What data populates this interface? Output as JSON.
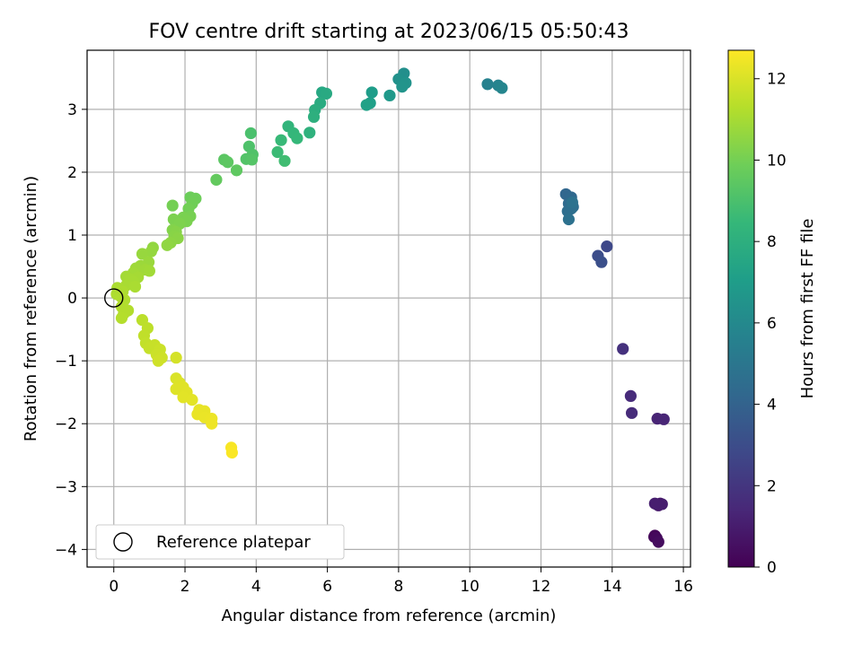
{
  "chart_data": {
    "type": "scatter",
    "title": "FOV centre drift starting at 2023/06/15 05:50:43",
    "xlabel": "Angular distance from reference (arcmin)",
    "ylabel": "Rotation from reference (arcmin)",
    "xlim": [
      -0.75,
      16.2
    ],
    "ylim": [
      -4.28,
      3.94
    ],
    "xticks": [
      "0",
      "2",
      "4",
      "6",
      "8",
      "10",
      "12",
      "14",
      "16"
    ],
    "yticks": [
      "−4",
      "−3",
      "−2",
      "−1",
      "0",
      "1",
      "2",
      "3"
    ],
    "grid": true,
    "legend": {
      "placement": "lower-left",
      "entries": [
        "Reference platepar"
      ]
    },
    "reference_point": {
      "x": 0,
      "y": 0
    },
    "colorbar": {
      "label": "Hours from first FF file",
      "range": [
        0,
        12.7
      ],
      "ticks": [
        "0",
        "2",
        "4",
        "6",
        "8",
        "10",
        "12"
      ],
      "colormap": [
        "#440154",
        "#482878",
        "#3e4989",
        "#31688e",
        "#26828e",
        "#1f9e89",
        "#35b779",
        "#6ece58",
        "#b5de2b",
        "#fde725"
      ]
    },
    "points": [
      {
        "x": 15.2,
        "y": -3.78,
        "t": 0.1
      },
      {
        "x": 15.18,
        "y": -3.8,
        "t": 0.2
      },
      {
        "x": 15.25,
        "y": -3.82,
        "t": 0.3
      },
      {
        "x": 15.3,
        "y": -3.88,
        "t": 0.4
      },
      {
        "x": 15.25,
        "y": -3.28,
        "t": 0.7
      },
      {
        "x": 15.35,
        "y": -3.27,
        "t": 0.8
      },
      {
        "x": 15.3,
        "y": -3.3,
        "t": 0.9
      },
      {
        "x": 15.4,
        "y": -3.28,
        "t": 1.0
      },
      {
        "x": 15.2,
        "y": -3.27,
        "t": 1.05
      },
      {
        "x": 15.27,
        "y": -1.92,
        "t": 1.3
      },
      {
        "x": 15.45,
        "y": -1.93,
        "t": 1.35
      },
      {
        "x": 14.52,
        "y": -1.56,
        "t": 1.55
      },
      {
        "x": 14.55,
        "y": -1.83,
        "t": 1.6
      },
      {
        "x": 14.3,
        "y": -0.81,
        "t": 1.8
      },
      {
        "x": 13.85,
        "y": 0.82,
        "t": 2.8
      },
      {
        "x": 13.6,
        "y": 0.67,
        "t": 3.0
      },
      {
        "x": 13.7,
        "y": 0.57,
        "t": 3.1
      },
      {
        "x": 12.7,
        "y": 1.65,
        "t": 4.2
      },
      {
        "x": 12.85,
        "y": 1.6,
        "t": 4.3
      },
      {
        "x": 12.78,
        "y": 1.5,
        "t": 4.4
      },
      {
        "x": 12.9,
        "y": 1.45,
        "t": 4.5
      },
      {
        "x": 12.75,
        "y": 1.38,
        "t": 4.55
      },
      {
        "x": 12.85,
        "y": 1.42,
        "t": 4.6
      },
      {
        "x": 12.78,
        "y": 1.25,
        "t": 4.7
      },
      {
        "x": 12.88,
        "y": 1.52,
        "t": 4.75
      },
      {
        "x": 10.5,
        "y": 3.4,
        "t": 5.6
      },
      {
        "x": 10.8,
        "y": 3.38,
        "t": 5.7
      },
      {
        "x": 10.9,
        "y": 3.34,
        "t": 5.8
      },
      {
        "x": 8.15,
        "y": 3.57,
        "t": 6.3
      },
      {
        "x": 8.0,
        "y": 3.48,
        "t": 6.4
      },
      {
        "x": 8.2,
        "y": 3.42,
        "t": 6.5
      },
      {
        "x": 8.1,
        "y": 3.36,
        "t": 6.55
      },
      {
        "x": 7.75,
        "y": 3.22,
        "t": 6.8
      },
      {
        "x": 7.25,
        "y": 3.27,
        "t": 7.0
      },
      {
        "x": 7.2,
        "y": 3.1,
        "t": 7.1
      },
      {
        "x": 7.1,
        "y": 3.07,
        "t": 7.2
      },
      {
        "x": 5.85,
        "y": 3.27,
        "t": 7.6
      },
      {
        "x": 5.97,
        "y": 3.25,
        "t": 7.7
      },
      {
        "x": 5.8,
        "y": 3.1,
        "t": 7.8
      },
      {
        "x": 5.65,
        "y": 2.99,
        "t": 7.9
      },
      {
        "x": 5.62,
        "y": 2.88,
        "t": 8.0
      },
      {
        "x": 5.5,
        "y": 2.63,
        "t": 8.15
      },
      {
        "x": 4.9,
        "y": 2.73,
        "t": 8.3
      },
      {
        "x": 5.05,
        "y": 2.62,
        "t": 8.4
      },
      {
        "x": 5.15,
        "y": 2.54,
        "t": 8.45
      },
      {
        "x": 4.7,
        "y": 2.51,
        "t": 8.55
      },
      {
        "x": 4.6,
        "y": 2.32,
        "t": 8.65
      },
      {
        "x": 4.8,
        "y": 2.18,
        "t": 8.75
      },
      {
        "x": 3.85,
        "y": 2.62,
        "t": 9.0
      },
      {
        "x": 3.8,
        "y": 2.41,
        "t": 9.1
      },
      {
        "x": 3.9,
        "y": 2.28,
        "t": 9.15
      },
      {
        "x": 3.72,
        "y": 2.21,
        "t": 9.2
      },
      {
        "x": 3.88,
        "y": 2.2,
        "t": 9.25
      },
      {
        "x": 3.1,
        "y": 2.2,
        "t": 9.4
      },
      {
        "x": 3.2,
        "y": 2.16,
        "t": 9.45
      },
      {
        "x": 3.45,
        "y": 2.03,
        "t": 9.5
      },
      {
        "x": 2.88,
        "y": 1.88,
        "t": 9.6
      },
      {
        "x": 2.15,
        "y": 1.6,
        "t": 9.8
      },
      {
        "x": 2.3,
        "y": 1.58,
        "t": 9.85
      },
      {
        "x": 2.2,
        "y": 1.5,
        "t": 9.9
      },
      {
        "x": 2.1,
        "y": 1.42,
        "t": 9.95
      },
      {
        "x": 1.65,
        "y": 1.47,
        "t": 10.0
      },
      {
        "x": 2.15,
        "y": 1.3,
        "t": 10.05
      },
      {
        "x": 1.95,
        "y": 1.28,
        "t": 10.1
      },
      {
        "x": 2.05,
        "y": 1.22,
        "t": 10.12
      },
      {
        "x": 1.68,
        "y": 1.25,
        "t": 10.15
      },
      {
        "x": 1.85,
        "y": 1.18,
        "t": 10.2
      },
      {
        "x": 1.65,
        "y": 1.08,
        "t": 10.3
      },
      {
        "x": 1.75,
        "y": 1.05,
        "t": 10.35
      },
      {
        "x": 1.7,
        "y": 0.98,
        "t": 10.4
      },
      {
        "x": 1.8,
        "y": 0.95,
        "t": 10.45
      },
      {
        "x": 1.6,
        "y": 0.88,
        "t": 10.5
      },
      {
        "x": 1.5,
        "y": 0.84,
        "t": 10.55
      },
      {
        "x": 1.1,
        "y": 0.8,
        "t": 10.6
      },
      {
        "x": 1.05,
        "y": 0.74,
        "t": 10.65
      },
      {
        "x": 0.8,
        "y": 0.7,
        "t": 10.7
      },
      {
        "x": 0.98,
        "y": 0.57,
        "t": 10.75
      },
      {
        "x": 0.75,
        "y": 0.51,
        "t": 10.8
      },
      {
        "x": 0.62,
        "y": 0.47,
        "t": 10.85
      },
      {
        "x": 0.88,
        "y": 0.45,
        "t": 10.88
      },
      {
        "x": 1.0,
        "y": 0.43,
        "t": 10.9
      },
      {
        "x": 0.55,
        "y": 0.4,
        "t": 10.92
      },
      {
        "x": 0.35,
        "y": 0.34,
        "t": 10.95
      },
      {
        "x": 0.68,
        "y": 0.33,
        "t": 10.97
      },
      {
        "x": 0.45,
        "y": 0.3,
        "t": 11.0
      },
      {
        "x": 0.55,
        "y": 0.26,
        "t": 11.02
      },
      {
        "x": 0.35,
        "y": 0.2,
        "t": 11.05
      },
      {
        "x": 0.6,
        "y": 0.18,
        "t": 11.07
      },
      {
        "x": 0.1,
        "y": 0.16,
        "t": 11.1
      },
      {
        "x": 0.25,
        "y": 0.1,
        "t": 11.12
      },
      {
        "x": 0.08,
        "y": 0.06,
        "t": 11.14
      },
      {
        "x": 0.2,
        "y": 0.02,
        "t": 11.16
      },
      {
        "x": 0.3,
        "y": -0.03,
        "t": 11.18
      },
      {
        "x": 0.22,
        "y": -0.14,
        "t": 11.2
      },
      {
        "x": 0.4,
        "y": -0.2,
        "t": 11.22
      },
      {
        "x": 0.28,
        "y": -0.25,
        "t": 11.24
      },
      {
        "x": 0.22,
        "y": -0.32,
        "t": 11.26
      },
      {
        "x": 0.8,
        "y": -0.35,
        "t": 11.4
      },
      {
        "x": 0.95,
        "y": -0.48,
        "t": 11.45
      },
      {
        "x": 0.85,
        "y": -0.6,
        "t": 11.5
      },
      {
        "x": 0.9,
        "y": -0.72,
        "t": 11.55
      },
      {
        "x": 1.0,
        "y": -0.8,
        "t": 11.6
      },
      {
        "x": 1.15,
        "y": -0.75,
        "t": 11.65
      },
      {
        "x": 1.3,
        "y": -0.82,
        "t": 11.7
      },
      {
        "x": 1.2,
        "y": -0.9,
        "t": 11.72
      },
      {
        "x": 1.35,
        "y": -0.95,
        "t": 11.75
      },
      {
        "x": 1.25,
        "y": -1.0,
        "t": 11.8
      },
      {
        "x": 1.75,
        "y": -0.95,
        "t": 11.9
      },
      {
        "x": 1.75,
        "y": -1.28,
        "t": 12.0
      },
      {
        "x": 1.85,
        "y": -1.35,
        "t": 12.05
      },
      {
        "x": 1.75,
        "y": -1.45,
        "t": 12.1
      },
      {
        "x": 1.95,
        "y": -1.42,
        "t": 12.12
      },
      {
        "x": 2.05,
        "y": -1.5,
        "t": 12.15
      },
      {
        "x": 1.95,
        "y": -1.58,
        "t": 12.18
      },
      {
        "x": 2.2,
        "y": -1.62,
        "t": 12.2
      },
      {
        "x": 2.4,
        "y": -1.78,
        "t": 12.25
      },
      {
        "x": 2.55,
        "y": -1.8,
        "t": 12.28
      },
      {
        "x": 2.35,
        "y": -1.85,
        "t": 12.3
      },
      {
        "x": 2.55,
        "y": -1.9,
        "t": 12.33
      },
      {
        "x": 2.75,
        "y": -1.92,
        "t": 12.36
      },
      {
        "x": 2.75,
        "y": -2.0,
        "t": 12.4
      },
      {
        "x": 3.3,
        "y": -2.38,
        "t": 12.6
      },
      {
        "x": 3.32,
        "y": -2.46,
        "t": 12.65
      }
    ]
  }
}
